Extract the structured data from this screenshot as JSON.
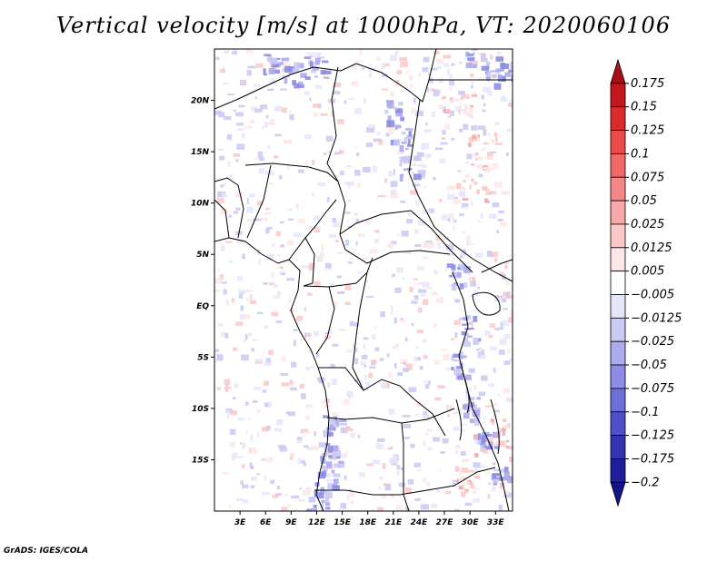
{
  "title": "Vertical velocity [m/s] at 1000hPa, VT: 2020060106",
  "footer": "GrADS: IGES/COLA",
  "chart_data": {
    "type": "heatmap",
    "title": "Vertical velocity [m/s] at 1000hPa, VT: 2020060106",
    "variable": "Vertical velocity",
    "units": "m/s",
    "level": "1000hPa",
    "valid_time": "2020060106",
    "x_range_deg": [
      0,
      35
    ],
    "y_range_deg": [
      -20,
      25
    ],
    "x_ticks": [
      {
        "value": 3,
        "label": "3E"
      },
      {
        "value": 6,
        "label": "6E"
      },
      {
        "value": 9,
        "label": "9E"
      },
      {
        "value": 12,
        "label": "12E"
      },
      {
        "value": 15,
        "label": "15E"
      },
      {
        "value": 18,
        "label": "18E"
      },
      {
        "value": 21,
        "label": "21E"
      },
      {
        "value": 24,
        "label": "24E"
      },
      {
        "value": 27,
        "label": "27E"
      },
      {
        "value": 30,
        "label": "30E"
      },
      {
        "value": 33,
        "label": "33E"
      }
    ],
    "y_ticks": [
      {
        "value": 20,
        "label": "20N"
      },
      {
        "value": 15,
        "label": "15N"
      },
      {
        "value": 10,
        "label": "10N"
      },
      {
        "value": 5,
        "label": "5N"
      },
      {
        "value": 0,
        "label": "EQ"
      },
      {
        "value": -5,
        "label": "5S"
      },
      {
        "value": -10,
        "label": "10S"
      },
      {
        "value": -15,
        "label": "15S"
      }
    ],
    "colorbar": {
      "labels": [
        "0.175",
        "0.15",
        "0.125",
        "0.1",
        "0.075",
        "0.05",
        "0.025",
        "0.0125",
        "0.005",
        "−0.005",
        "−0.0125",
        "−0.025",
        "−0.05",
        "−0.075",
        "−0.1",
        "−0.125",
        "−0.175",
        "−0.2"
      ],
      "colors": [
        "#a50f15",
        "#c4161c",
        "#dc2a2a",
        "#ea4a4a",
        "#f06868",
        "#f48888",
        "#f8a8a8",
        "#fbc8c8",
        "#fde6e6",
        "#ffffff",
        "#e6e6fb",
        "#c9c9f4",
        "#ababee",
        "#8d8de6",
        "#6e6ed9",
        "#5050c8",
        "#3434b2",
        "#1e1e9a",
        "#14148a"
      ]
    }
  }
}
